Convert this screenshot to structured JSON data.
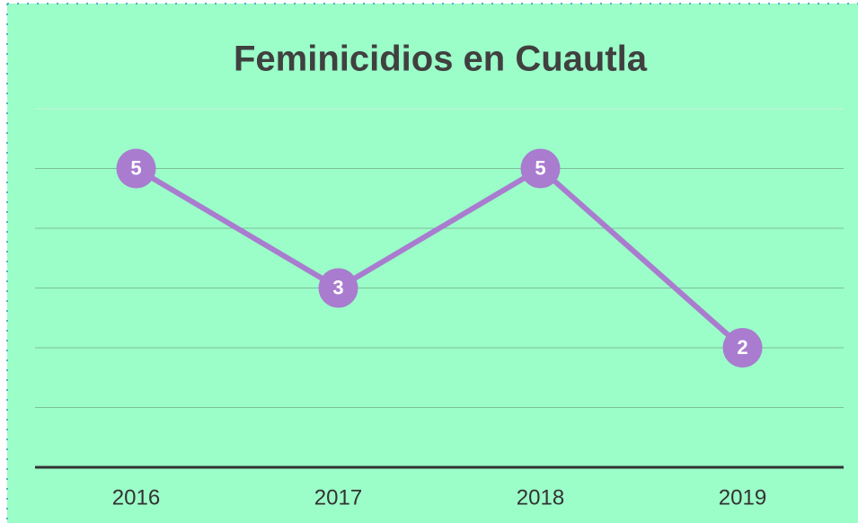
{
  "chart_data": {
    "type": "line",
    "title": "Feminicidios en Cuautla",
    "categories": [
      "2016",
      "2017",
      "2018",
      "2019"
    ],
    "series": [
      {
        "name": "Feminicidios",
        "color": "#a97ccf",
        "values": [
          5,
          3,
          5,
          2
        ]
      }
    ],
    "ylim": [
      0,
      6
    ],
    "yticks": [
      0,
      1,
      2,
      3,
      4,
      5,
      6
    ],
    "grid": true
  }
}
